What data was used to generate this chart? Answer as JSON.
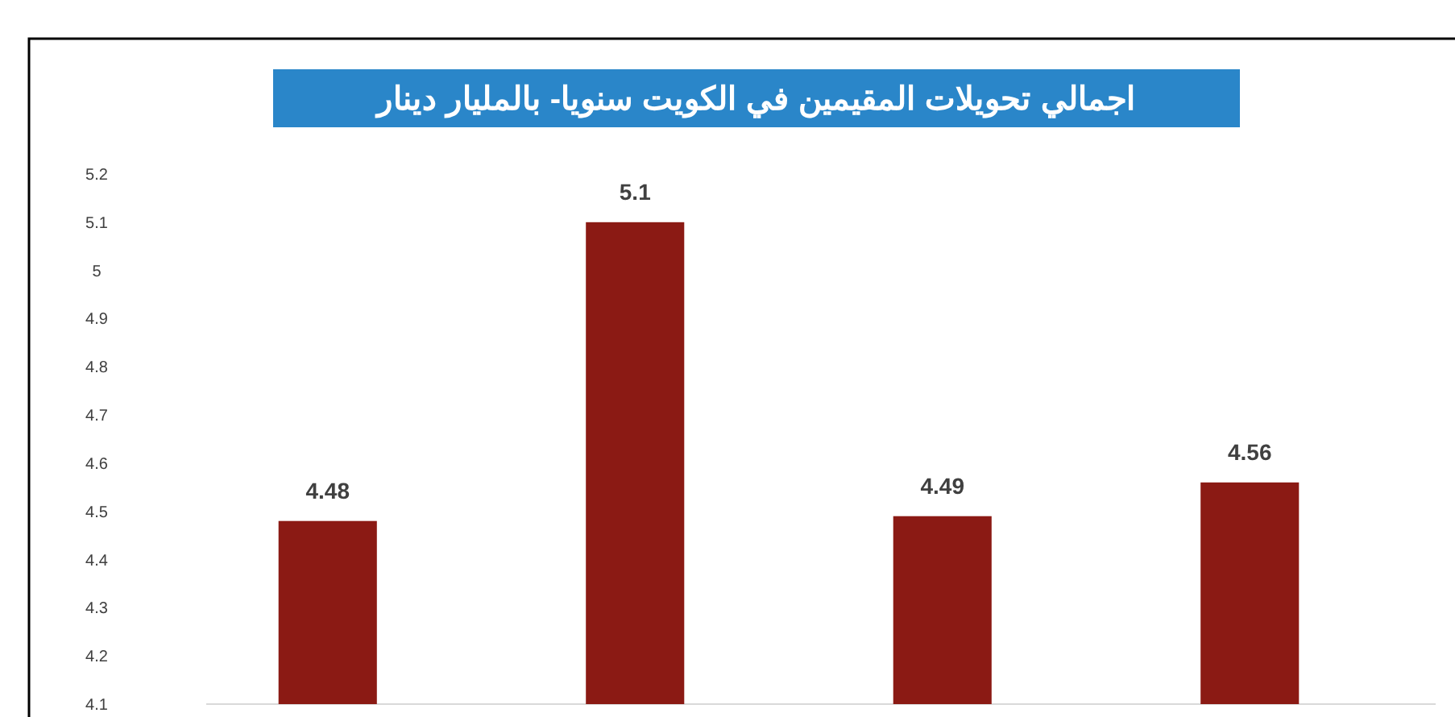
{
  "chart_data": {
    "type": "bar",
    "title": "اجمالي تحويلات المقيمين في الكويت سنويا- بالمليار دينار",
    "categories": [
      null,
      null,
      null,
      null
    ],
    "values": [
      4.48,
      5.1,
      4.49,
      4.56
    ],
    "color": "#8b1a14",
    "ylim": [
      4.1,
      5.2
    ],
    "yticks": [
      4.1,
      4.2,
      4.3,
      4.4,
      4.5,
      4.6,
      4.7,
      4.8,
      4.9,
      5,
      5.1,
      5.2
    ],
    "grid": false,
    "data_labels": true
  }
}
